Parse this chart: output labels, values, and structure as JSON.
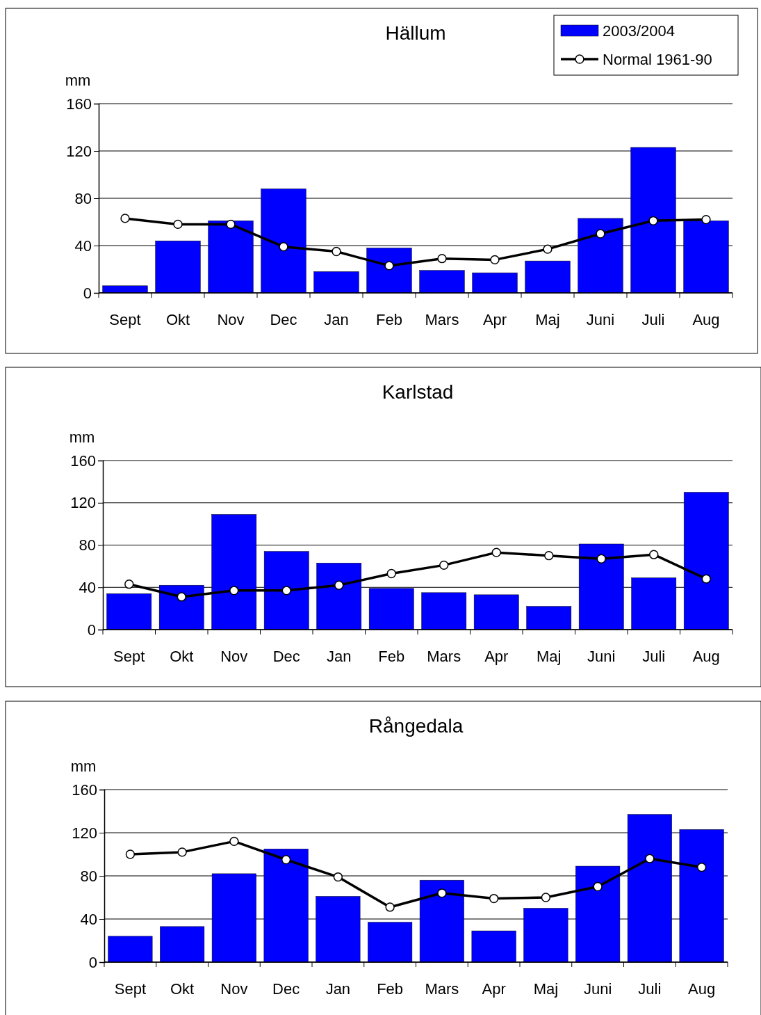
{
  "chart_data": [
    {
      "type": "bar",
      "title": "Hällum",
      "ylabel": "mm",
      "categories": [
        "Sept",
        "Okt",
        "Nov",
        "Dec",
        "Jan",
        "Feb",
        "Mars",
        "Apr",
        "Maj",
        "Juni",
        "Juli",
        "Aug"
      ],
      "ylim": [
        0,
        160
      ],
      "yticks": [
        0,
        40,
        80,
        120,
        160
      ],
      "grid": "y",
      "legend": "top right",
      "series": [
        {
          "name": "2003/2004",
          "color": "#0000ff",
          "values": [
            6,
            44,
            61,
            88,
            18,
            38,
            19,
            17,
            27,
            63,
            123,
            61
          ]
        },
        {
          "name": "Normal 1961-90",
          "type": "line",
          "color": "#000000",
          "marker": "circle",
          "values": [
            63,
            58,
            58,
            39,
            35,
            23,
            29,
            28,
            37,
            50,
            61,
            62
          ]
        }
      ]
    },
    {
      "type": "bar",
      "title": "Karlstad",
      "ylabel": "mm",
      "categories": [
        "Sept",
        "Okt",
        "Nov",
        "Dec",
        "Jan",
        "Feb",
        "Mars",
        "Apr",
        "Maj",
        "Juni",
        "Juli",
        "Aug"
      ],
      "ylim": [
        0,
        160
      ],
      "yticks": [
        0,
        40,
        80,
        120,
        160
      ],
      "grid": "y",
      "series": [
        {
          "color": "#0000ff",
          "values": [
            34,
            42,
            109,
            74,
            63,
            39,
            35,
            33,
            22,
            81,
            49,
            130
          ]
        },
        {
          "type": "line",
          "color": "#000000",
          "marker": "circle",
          "values": [
            43,
            31,
            37,
            37,
            42,
            53,
            61,
            73,
            70,
            67,
            71,
            48
          ]
        }
      ]
    },
    {
      "type": "bar",
      "title": "Rångedala",
      "ylabel": "mm",
      "categories": [
        "Sept",
        "Okt",
        "Nov",
        "Dec",
        "Jan",
        "Feb",
        "Mars",
        "Apr",
        "Maj",
        "Juni",
        "Juli",
        "Aug"
      ],
      "ylim": [
        0,
        160
      ],
      "yticks": [
        0,
        40,
        80,
        120,
        160
      ],
      "grid": "y",
      "series": [
        {
          "color": "#0000ff",
          "values": [
            24,
            33,
            82,
            105,
            61,
            37,
            76,
            29,
            50,
            89,
            137,
            123
          ]
        },
        {
          "type": "line",
          "color": "#000000",
          "marker": "circle",
          "values": [
            100,
            102,
            112,
            95,
            79,
            51,
            64,
            59,
            60,
            70,
            96,
            88
          ]
        }
      ]
    }
  ]
}
